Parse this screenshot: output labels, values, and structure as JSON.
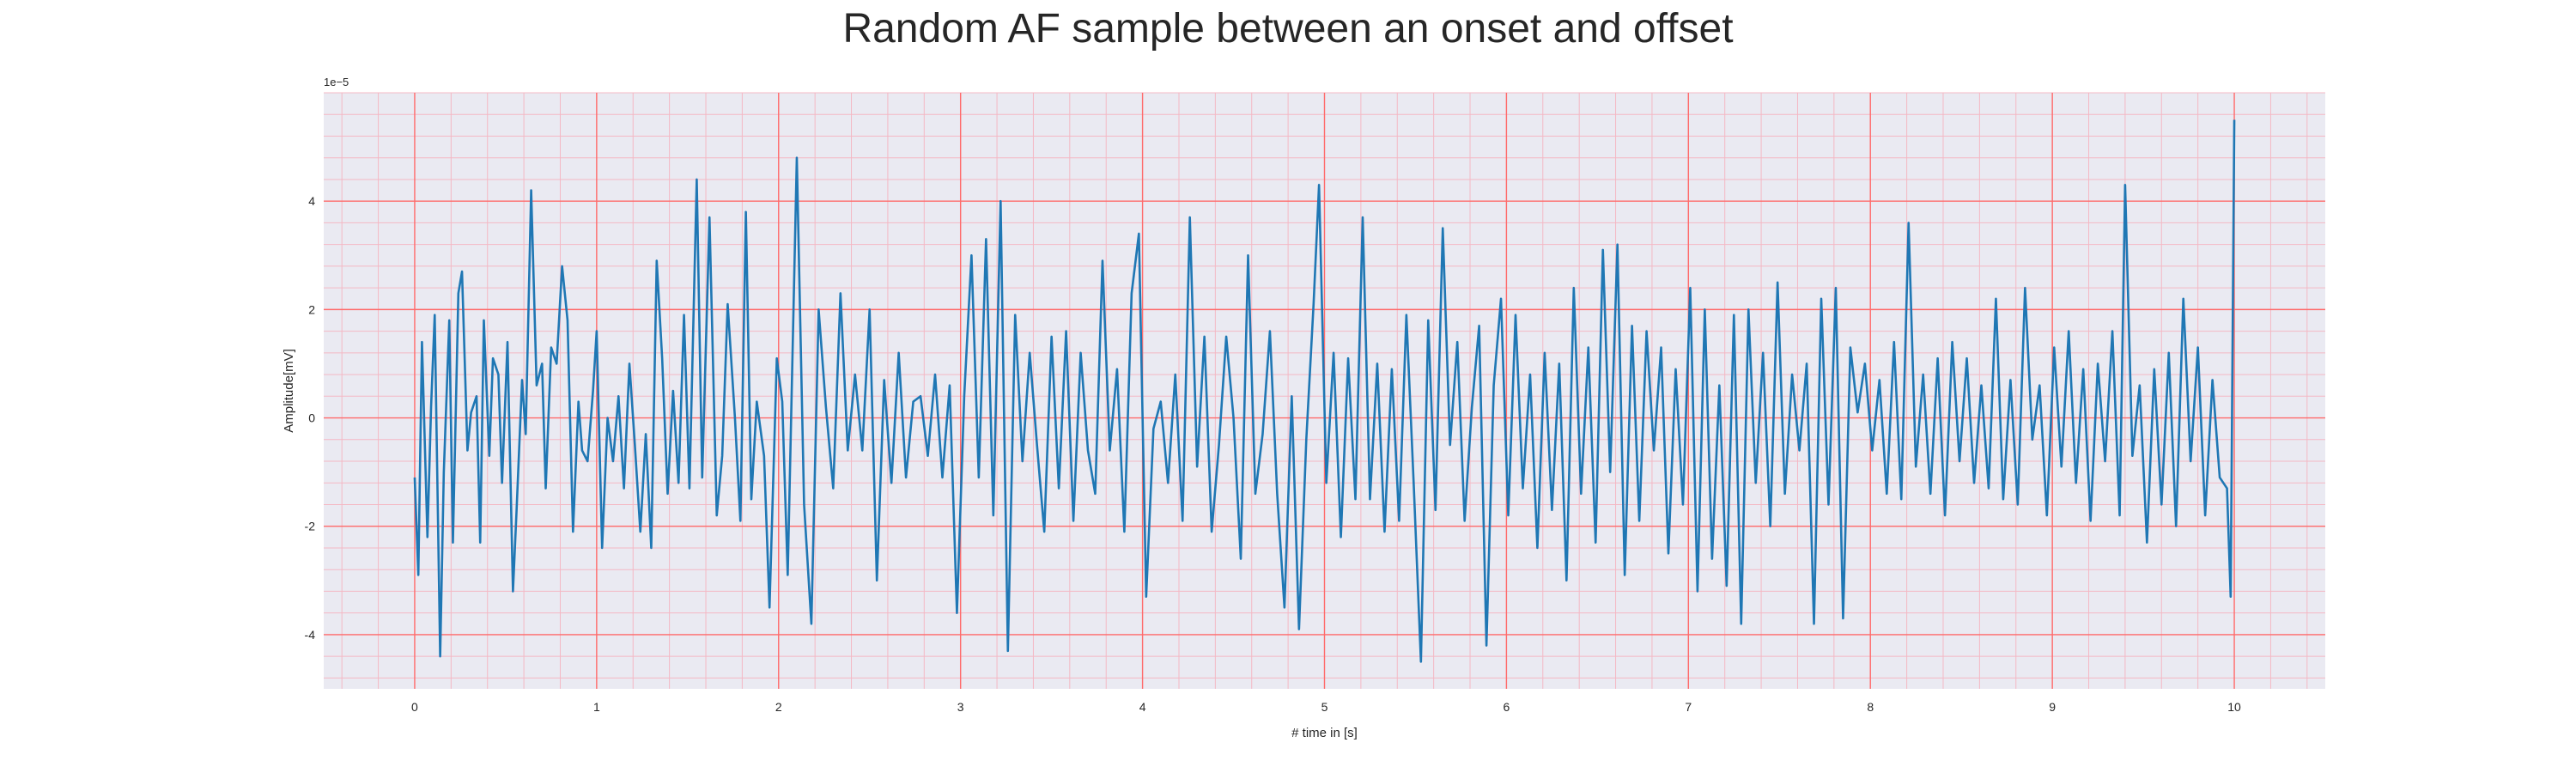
{
  "chart_data": {
    "type": "line",
    "title": "Random AF sample between an onset and offset",
    "xlabel": "# time in [s]",
    "ylabel": "Amplitude[mV]",
    "y_offset_label": "1e−5",
    "xlim": [
      -0.5,
      10.5
    ],
    "ylim": [
      -5.0,
      6.0
    ],
    "y_scale_factor": 1e-05,
    "x_ticks": [
      0,
      1,
      2,
      3,
      4,
      5,
      6,
      7,
      8,
      9,
      10
    ],
    "y_ticks": [
      -4,
      -2,
      0,
      2,
      4
    ],
    "grid": true,
    "minor_grid": true,
    "legend": "none",
    "colors": {
      "line": "#1f77b4",
      "background": "#eaeaf2",
      "major_grid": "#ff6b6b",
      "minor_grid": "#f4b8c4"
    },
    "series": [
      {
        "x_start": 0,
        "x_end": 10,
        "keypoints": [
          [
            0.0,
            -1.1
          ],
          [
            0.02,
            -2.9
          ],
          [
            0.04,
            1.4
          ],
          [
            0.07,
            -2.2
          ],
          [
            0.09,
            0.2
          ],
          [
            0.11,
            1.9
          ],
          [
            0.14,
            -4.4
          ],
          [
            0.16,
            -1.0
          ],
          [
            0.19,
            1.8
          ],
          [
            0.21,
            -2.3
          ],
          [
            0.24,
            2.3
          ],
          [
            0.26,
            2.7
          ],
          [
            0.29,
            -0.6
          ],
          [
            0.31,
            0.1
          ],
          [
            0.34,
            0.4
          ],
          [
            0.36,
            -2.3
          ],
          [
            0.38,
            1.8
          ],
          [
            0.41,
            -0.7
          ],
          [
            0.43,
            1.1
          ],
          [
            0.46,
            0.8
          ],
          [
            0.48,
            -1.2
          ],
          [
            0.51,
            1.4
          ],
          [
            0.54,
            -3.2
          ],
          [
            0.56,
            -1.7
          ],
          [
            0.59,
            0.7
          ],
          [
            0.61,
            -0.3
          ],
          [
            0.64,
            4.2
          ],
          [
            0.67,
            0.6
          ],
          [
            0.7,
            1.0
          ],
          [
            0.72,
            -1.3
          ],
          [
            0.75,
            1.3
          ],
          [
            0.78,
            1.0
          ],
          [
            0.81,
            2.8
          ],
          [
            0.84,
            1.8
          ],
          [
            0.87,
            -2.1
          ],
          [
            0.9,
            0.3
          ],
          [
            0.92,
            -0.6
          ],
          [
            0.95,
            -0.8
          ],
          [
            0.98,
            0.5
          ],
          [
            1.0,
            1.6
          ],
          [
            1.03,
            -2.4
          ],
          [
            1.06,
            0.0
          ],
          [
            1.09,
            -0.8
          ],
          [
            1.12,
            0.4
          ],
          [
            1.15,
            -1.3
          ],
          [
            1.18,
            1.0
          ],
          [
            1.21,
            -0.5
          ],
          [
            1.24,
            -2.1
          ],
          [
            1.27,
            -0.3
          ],
          [
            1.3,
            -2.4
          ],
          [
            1.33,
            2.9
          ],
          [
            1.36,
            1.1
          ],
          [
            1.39,
            -1.4
          ],
          [
            1.42,
            0.5
          ],
          [
            1.45,
            -1.2
          ],
          [
            1.48,
            1.9
          ],
          [
            1.51,
            -1.3
          ],
          [
            1.55,
            4.4
          ],
          [
            1.58,
            -1.1
          ],
          [
            1.62,
            3.7
          ],
          [
            1.66,
            -1.8
          ],
          [
            1.69,
            -0.7
          ],
          [
            1.72,
            2.1
          ],
          [
            1.76,
            0.0
          ],
          [
            1.79,
            -1.9
          ],
          [
            1.82,
            3.8
          ],
          [
            1.85,
            -1.5
          ],
          [
            1.88,
            0.3
          ],
          [
            1.92,
            -0.7
          ],
          [
            1.95,
            -3.5
          ],
          [
            1.99,
            1.1
          ],
          [
            2.02,
            0.3
          ],
          [
            2.05,
            -2.9
          ],
          [
            2.1,
            4.8
          ],
          [
            2.14,
            -1.6
          ],
          [
            2.18,
            -3.8
          ],
          [
            2.22,
            2.0
          ],
          [
            2.26,
            0.2
          ],
          [
            2.3,
            -1.3
          ],
          [
            2.34,
            2.3
          ],
          [
            2.38,
            -0.6
          ],
          [
            2.42,
            0.8
          ],
          [
            2.46,
            -0.6
          ],
          [
            2.5,
            2.0
          ],
          [
            2.54,
            -3.0
          ],
          [
            2.58,
            0.7
          ],
          [
            2.62,
            -1.2
          ],
          [
            2.66,
            1.2
          ],
          [
            2.7,
            -1.1
          ],
          [
            2.74,
            0.3
          ],
          [
            2.78,
            0.4
          ],
          [
            2.82,
            -0.7
          ],
          [
            2.86,
            0.8
          ],
          [
            2.9,
            -1.1
          ],
          [
            2.94,
            0.6
          ],
          [
            2.98,
            -3.6
          ],
          [
            3.02,
            0.4
          ],
          [
            3.06,
            3.0
          ],
          [
            3.1,
            -1.1
          ],
          [
            3.14,
            3.3
          ],
          [
            3.18,
            -1.8
          ],
          [
            3.22,
            4.0
          ],
          [
            3.26,
            -4.3
          ],
          [
            3.3,
            1.9
          ],
          [
            3.34,
            -0.8
          ],
          [
            3.38,
            1.2
          ],
          [
            3.42,
            -0.5
          ],
          [
            3.46,
            -2.1
          ],
          [
            3.5,
            1.5
          ],
          [
            3.54,
            -1.3
          ],
          [
            3.58,
            1.6
          ],
          [
            3.62,
            -1.9
          ],
          [
            3.66,
            1.2
          ],
          [
            3.7,
            -0.6
          ],
          [
            3.74,
            -1.4
          ],
          [
            3.78,
            2.9
          ],
          [
            3.82,
            -0.6
          ],
          [
            3.86,
            0.9
          ],
          [
            3.9,
            -2.1
          ],
          [
            3.94,
            2.3
          ],
          [
            3.98,
            3.4
          ],
          [
            4.02,
            -3.3
          ],
          [
            4.06,
            -0.2
          ],
          [
            4.1,
            0.3
          ],
          [
            4.14,
            -1.2
          ],
          [
            4.18,
            0.8
          ],
          [
            4.22,
            -1.9
          ],
          [
            4.26,
            3.7
          ],
          [
            4.3,
            -0.9
          ],
          [
            4.34,
            1.5
          ],
          [
            4.38,
            -2.1
          ],
          [
            4.42,
            -0.5
          ],
          [
            4.46,
            1.5
          ],
          [
            4.5,
            0.0
          ],
          [
            4.54,
            -2.6
          ],
          [
            4.58,
            3.0
          ],
          [
            4.62,
            -1.4
          ],
          [
            4.66,
            -0.3
          ],
          [
            4.7,
            1.6
          ],
          [
            4.74,
            -1.4
          ],
          [
            4.78,
            -3.5
          ],
          [
            4.82,
            0.4
          ],
          [
            4.86,
            -3.9
          ],
          [
            4.9,
            -0.4
          ],
          [
            4.94,
            2.1
          ],
          [
            4.97,
            4.3
          ],
          [
            5.01,
            -1.2
          ],
          [
            5.05,
            1.2
          ],
          [
            5.09,
            -2.2
          ],
          [
            5.13,
            1.1
          ],
          [
            5.17,
            -1.5
          ],
          [
            5.21,
            3.7
          ],
          [
            5.25,
            -1.5
          ],
          [
            5.29,
            1.0
          ],
          [
            5.33,
            -2.1
          ],
          [
            5.37,
            0.9
          ],
          [
            5.41,
            -1.9
          ],
          [
            5.45,
            1.9
          ],
          [
            5.49,
            -1.2
          ],
          [
            5.53,
            -4.5
          ],
          [
            5.57,
            1.8
          ],
          [
            5.61,
            -1.7
          ],
          [
            5.65,
            3.5
          ],
          [
            5.69,
            -0.5
          ],
          [
            5.73,
            1.4
          ],
          [
            5.77,
            -1.9
          ],
          [
            5.81,
            0.2
          ],
          [
            5.85,
            1.7
          ],
          [
            5.89,
            -4.2
          ],
          [
            5.93,
            0.6
          ],
          [
            5.97,
            2.2
          ],
          [
            6.01,
            -1.8
          ],
          [
            6.05,
            1.9
          ],
          [
            6.09,
            -1.3
          ],
          [
            6.13,
            0.8
          ],
          [
            6.17,
            -2.4
          ],
          [
            6.21,
            1.2
          ],
          [
            6.25,
            -1.7
          ],
          [
            6.29,
            1.0
          ],
          [
            6.33,
            -3.0
          ],
          [
            6.37,
            2.4
          ],
          [
            6.41,
            -1.4
          ],
          [
            6.45,
            1.3
          ],
          [
            6.49,
            -2.3
          ],
          [
            6.53,
            3.1
          ],
          [
            6.57,
            -1.0
          ],
          [
            6.61,
            3.2
          ],
          [
            6.65,
            -2.9
          ],
          [
            6.69,
            1.7
          ],
          [
            6.73,
            -1.9
          ],
          [
            6.77,
            1.6
          ],
          [
            6.81,
            -0.6
          ],
          [
            6.85,
            1.3
          ],
          [
            6.89,
            -2.5
          ],
          [
            6.93,
            0.9
          ],
          [
            6.97,
            -1.6
          ],
          [
            7.01,
            2.4
          ],
          [
            7.05,
            -3.2
          ],
          [
            7.09,
            2.0
          ],
          [
            7.13,
            -2.6
          ],
          [
            7.17,
            0.6
          ],
          [
            7.21,
            -3.1
          ],
          [
            7.25,
            1.9
          ],
          [
            7.29,
            -3.8
          ],
          [
            7.33,
            2.0
          ],
          [
            7.37,
            -1.2
          ],
          [
            7.41,
            1.2
          ],
          [
            7.45,
            -2.0
          ],
          [
            7.49,
            2.5
          ],
          [
            7.53,
            -1.4
          ],
          [
            7.57,
            0.8
          ],
          [
            7.61,
            -0.6
          ],
          [
            7.65,
            1.0
          ],
          [
            7.69,
            -3.8
          ],
          [
            7.73,
            2.2
          ],
          [
            7.77,
            -1.6
          ],
          [
            7.81,
            2.4
          ],
          [
            7.85,
            -3.7
          ],
          [
            7.89,
            1.3
          ],
          [
            7.93,
            0.1
          ],
          [
            7.97,
            1.0
          ],
          [
            8.01,
            -0.6
          ],
          [
            8.05,
            0.7
          ],
          [
            8.09,
            -1.4
          ],
          [
            8.13,
            1.4
          ],
          [
            8.17,
            -1.5
          ],
          [
            8.21,
            3.6
          ],
          [
            8.25,
            -0.9
          ],
          [
            8.29,
            0.8
          ],
          [
            8.33,
            -1.4
          ],
          [
            8.37,
            1.1
          ],
          [
            8.41,
            -1.8
          ],
          [
            8.45,
            1.4
          ],
          [
            8.49,
            -0.8
          ],
          [
            8.53,
            1.1
          ],
          [
            8.57,
            -1.2
          ],
          [
            8.61,
            0.6
          ],
          [
            8.65,
            -1.3
          ],
          [
            8.69,
            2.2
          ],
          [
            8.73,
            -1.5
          ],
          [
            8.77,
            0.7
          ],
          [
            8.81,
            -1.6
          ],
          [
            8.85,
            2.4
          ],
          [
            8.89,
            -0.4
          ],
          [
            8.93,
            0.6
          ],
          [
            8.97,
            -1.8
          ],
          [
            9.01,
            1.3
          ],
          [
            9.05,
            -0.9
          ],
          [
            9.09,
            1.6
          ],
          [
            9.13,
            -1.2
          ],
          [
            9.17,
            0.9
          ],
          [
            9.21,
            -1.9
          ],
          [
            9.25,
            1.0
          ],
          [
            9.29,
            -0.8
          ],
          [
            9.33,
            1.6
          ],
          [
            9.37,
            -1.8
          ],
          [
            9.4,
            4.3
          ],
          [
            9.44,
            -0.7
          ],
          [
            9.48,
            0.6
          ],
          [
            9.52,
            -2.3
          ],
          [
            9.56,
            0.9
          ],
          [
            9.6,
            -1.6
          ],
          [
            9.64,
            1.2
          ],
          [
            9.68,
            -2.0
          ],
          [
            9.72,
            2.2
          ],
          [
            9.76,
            -0.8
          ],
          [
            9.8,
            1.3
          ],
          [
            9.84,
            -1.8
          ],
          [
            9.88,
            0.7
          ],
          [
            9.92,
            -1.1
          ],
          [
            9.96,
            -1.3
          ],
          [
            9.98,
            -3.3
          ],
          [
            10.0,
            5.5
          ]
        ]
      }
    ]
  }
}
